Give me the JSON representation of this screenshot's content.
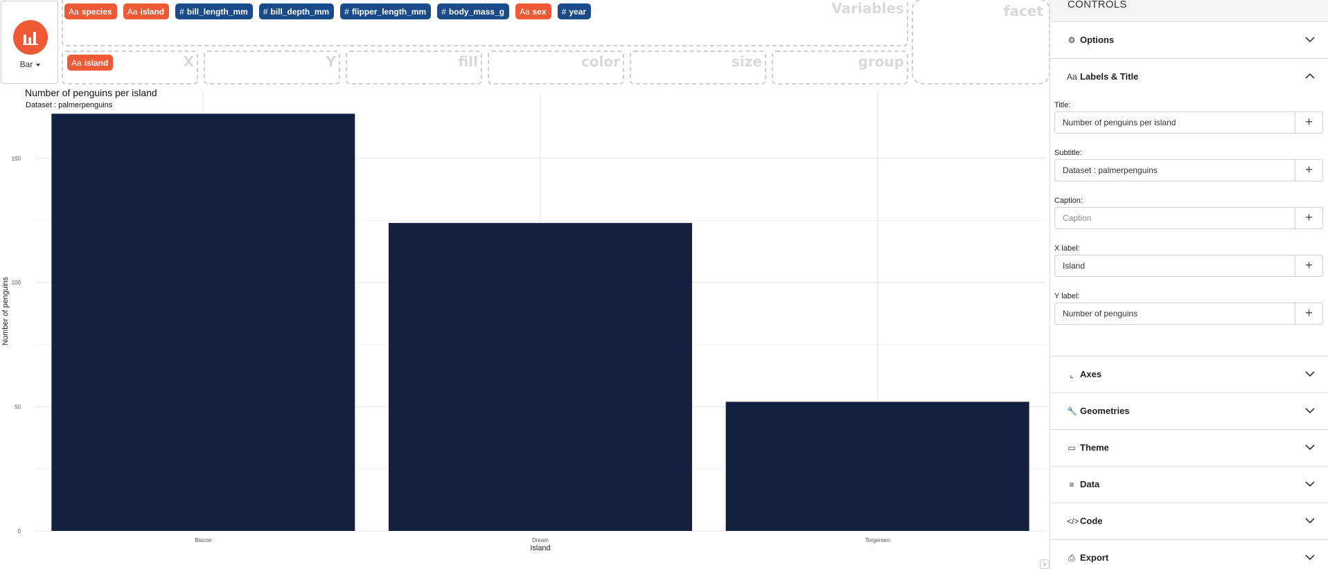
{
  "geom": {
    "label": "Bar",
    "icon": "bar-chart-icon",
    "accent": "#ee5a36"
  },
  "variables": {
    "zone_label": "Variables",
    "chips": [
      {
        "type_icon": "Aa",
        "name": "species",
        "kind": "categorical"
      },
      {
        "type_icon": "Aa",
        "name": "island",
        "kind": "categorical"
      },
      {
        "type_icon": "#",
        "name": "bill_length_mm",
        "kind": "numeric"
      },
      {
        "type_icon": "#",
        "name": "bill_depth_mm",
        "kind": "numeric"
      },
      {
        "type_icon": "#",
        "name": "flipper_length_mm",
        "kind": "numeric"
      },
      {
        "type_icon": "#",
        "name": "body_mass_g",
        "kind": "numeric"
      },
      {
        "type_icon": "Aa",
        "name": "sex",
        "kind": "categorical"
      },
      {
        "type_icon": "#",
        "name": "year",
        "kind": "numeric"
      }
    ]
  },
  "dropzones": {
    "facet": "facet",
    "x": "X",
    "y": "Y",
    "fill": "fill",
    "color": "color",
    "size": "size",
    "group": "group",
    "x_chip": {
      "type_icon": "Aa",
      "name": "island"
    }
  },
  "colors": {
    "categorical": "#ee5a36",
    "numeric": "#1a4a8a",
    "bar": "#13213f"
  },
  "chart_data": {
    "type": "bar",
    "title": "Number of penguins per island",
    "subtitle": "Dataset : palmerpenguins",
    "xlabel": "Island",
    "ylabel": "Number of penguins",
    "categories": [
      "Biscoe",
      "Dream",
      "Torgersen"
    ],
    "values": [
      168,
      124,
      52
    ],
    "ylim": [
      0,
      177
    ],
    "yticks": [
      0,
      50,
      100,
      150
    ],
    "grid": true
  },
  "controls": {
    "header": "CONTROLS",
    "sections": [
      {
        "key": "options",
        "label": "Options",
        "icon": "gear-icon",
        "glyph": "⚙",
        "open": false
      },
      {
        "key": "labels",
        "label": "Labels & Title",
        "icon": "text-icon",
        "glyph": "Aa",
        "open": true
      },
      {
        "key": "axes",
        "label": "Axes",
        "icon": "axes-icon",
        "glyph": "⌞",
        "open": false
      },
      {
        "key": "geometries",
        "label": "Geometries",
        "icon": "wrench-icon",
        "glyph": "🔧",
        "open": false
      },
      {
        "key": "theme",
        "label": "Theme",
        "icon": "paint-roller-icon",
        "glyph": "▭",
        "open": false
      },
      {
        "key": "data",
        "label": "Data",
        "icon": "sliders-icon",
        "glyph": "≡",
        "open": false
      },
      {
        "key": "code",
        "label": "Code",
        "icon": "code-icon",
        "glyph": "</>",
        "open": false
      },
      {
        "key": "export",
        "label": "Export",
        "icon": "file-export-icon",
        "glyph": "⎙",
        "open": false
      }
    ],
    "labels_fields": [
      {
        "label": "Title:",
        "value": "Number of penguins per island",
        "placeholder": ""
      },
      {
        "label": "Subtitle:",
        "value": "Dataset : palmerpenguins",
        "placeholder": ""
      },
      {
        "label": "Caption:",
        "value": "",
        "placeholder": "Caption"
      },
      {
        "label": "X label:",
        "value": "Island",
        "placeholder": ""
      },
      {
        "label": "Y label:",
        "value": "Number of penguins",
        "placeholder": ""
      }
    ]
  }
}
